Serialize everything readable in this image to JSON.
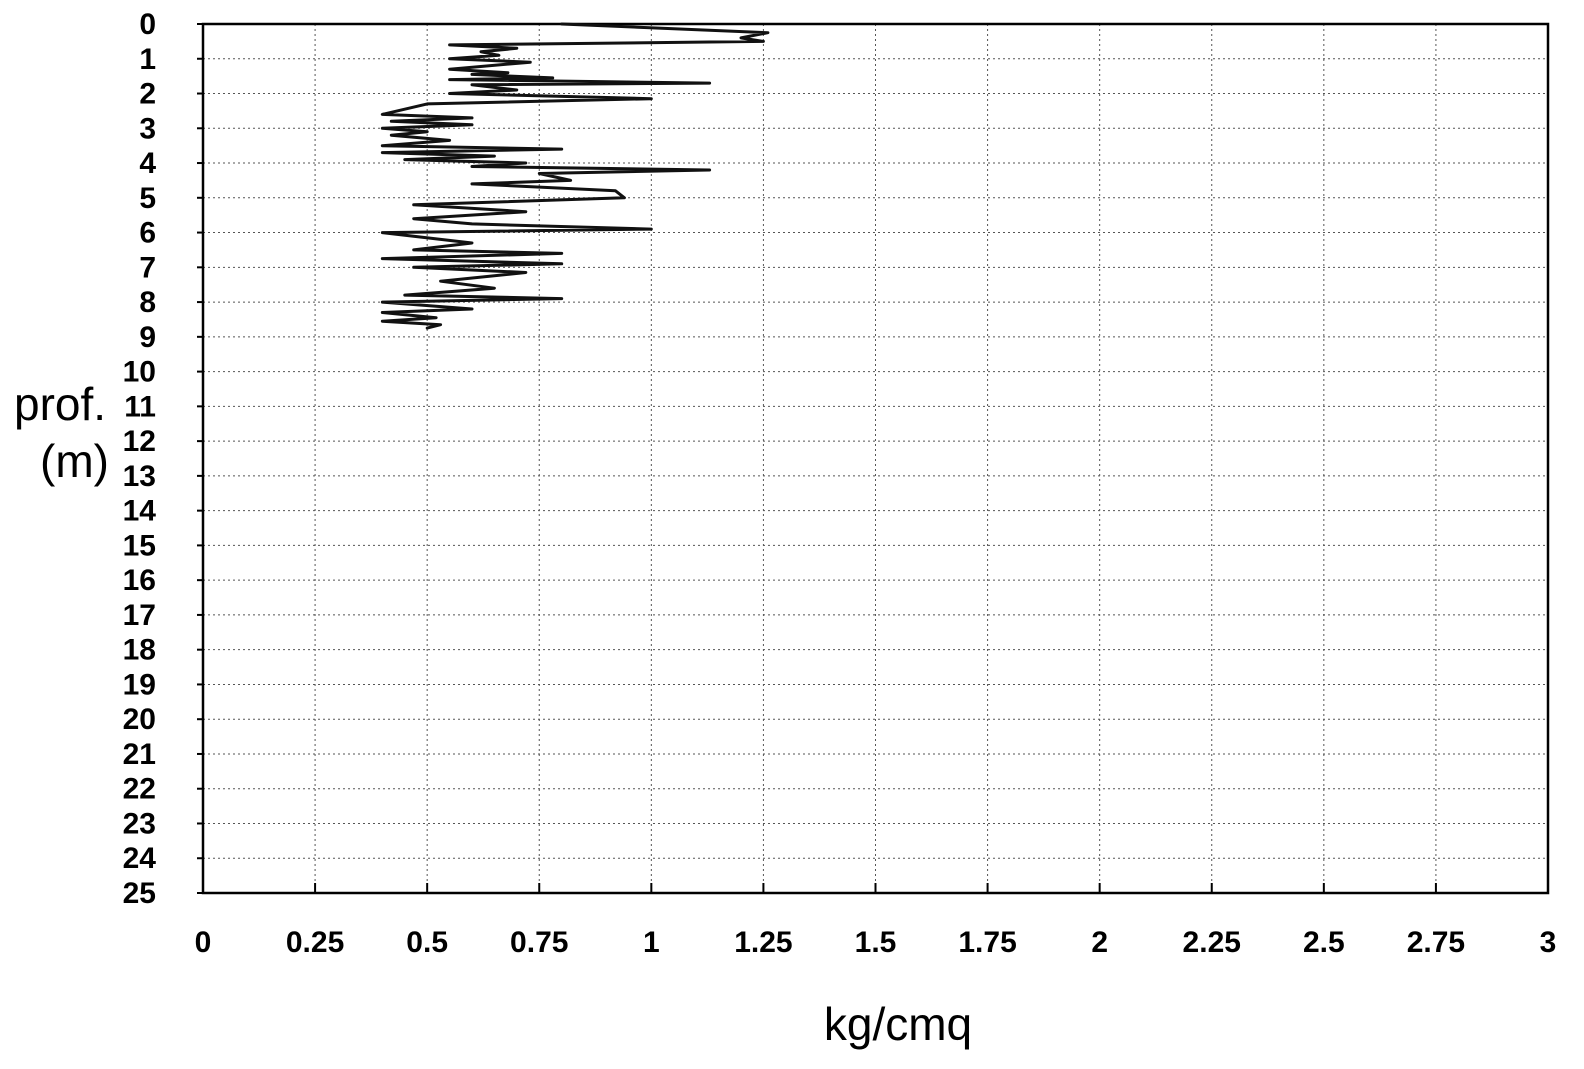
{
  "chart_data": {
    "type": "line",
    "title": "",
    "xlabel": "kg/cmq",
    "ylabel_line1": "prof.",
    "ylabel_line2": "(m)",
    "xlim": [
      0,
      3
    ],
    "ylim": [
      0,
      25
    ],
    "y_inverted": true,
    "grid": true,
    "grid_style": "dotted",
    "x_ticks": [
      0,
      0.25,
      0.5,
      0.75,
      1,
      1.25,
      1.5,
      1.75,
      2,
      2.25,
      2.5,
      2.75,
      3
    ],
    "x_tick_labels": [
      "0",
      "0.25",
      "0.5",
      "0.75",
      "1",
      "1.25",
      "1.5",
      "1.75",
      "2",
      "2.25",
      "2.5",
      "2.75",
      "3"
    ],
    "y_ticks": [
      0,
      1,
      2,
      3,
      4,
      5,
      6,
      7,
      8,
      9,
      10,
      11,
      12,
      13,
      14,
      15,
      16,
      17,
      18,
      19,
      20,
      21,
      22,
      23,
      24,
      25
    ],
    "y_tick_labels": [
      "0",
      "1",
      "2",
      "3",
      "4",
      "5",
      "6",
      "7",
      "8",
      "9",
      "10",
      "11",
      "12",
      "13",
      "14",
      "15",
      "16",
      "17",
      "18",
      "19",
      "20",
      "21",
      "22",
      "23",
      "24",
      "25"
    ],
    "line_color": "#111111",
    "series": [
      {
        "x": [
          0.8,
          1.26,
          1.2,
          1.25,
          0.55,
          0.7,
          0.62,
          0.66,
          0.55,
          0.73,
          0.55,
          0.68,
          0.6,
          0.78,
          0.55,
          1.13,
          0.6,
          0.7,
          0.55,
          1.0,
          0.5,
          0.4,
          0.6,
          0.42,
          0.6,
          0.4,
          0.5,
          0.42,
          0.55,
          0.4,
          0.8,
          0.4,
          0.65,
          0.45,
          0.72,
          0.6,
          1.13,
          0.75,
          0.82,
          0.6,
          0.92,
          0.94,
          0.47,
          0.72,
          0.47,
          0.6,
          1.0,
          0.4,
          0.6,
          0.47,
          0.8,
          0.4,
          0.8,
          0.47,
          0.72,
          0.53,
          0.65,
          0.45,
          0.8,
          0.4,
          0.6,
          0.4,
          0.52,
          0.4,
          0.53,
          0.5
        ],
        "y": [
          0.0,
          0.25,
          0.4,
          0.5,
          0.6,
          0.7,
          0.8,
          0.9,
          1.0,
          1.1,
          1.3,
          1.4,
          1.45,
          1.55,
          1.6,
          1.7,
          1.75,
          1.9,
          2.0,
          2.15,
          2.3,
          2.6,
          2.7,
          2.8,
          2.9,
          3.0,
          3.1,
          3.2,
          3.35,
          3.5,
          3.6,
          3.7,
          3.8,
          3.9,
          4.0,
          4.1,
          4.2,
          4.3,
          4.5,
          4.6,
          4.8,
          5.0,
          5.2,
          5.4,
          5.6,
          5.75,
          5.9,
          6.0,
          6.3,
          6.5,
          6.6,
          6.75,
          6.9,
          7.0,
          7.15,
          7.4,
          7.6,
          7.8,
          7.9,
          8.0,
          8.2,
          8.3,
          8.45,
          8.55,
          8.65,
          8.75
        ]
      }
    ]
  }
}
